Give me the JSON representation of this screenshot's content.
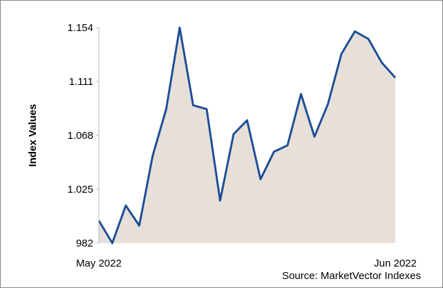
{
  "chart_data": {
    "type": "area",
    "y_label": "Index Values",
    "source": "Source: MarketVector Indexes",
    "categories": [
      "May 2022",
      null,
      null,
      null,
      null,
      null,
      null,
      null,
      null,
      null,
      null,
      null,
      null,
      null,
      null,
      null,
      null,
      null,
      null,
      null,
      null,
      null,
      "Jun 2022"
    ],
    "series": [
      {
        "name": "Index",
        "color": "#1f4e96",
        "fill": "#e6e0d8",
        "values": [
          1000,
          982,
          1012,
          996,
          1052,
          1089,
          1154,
          1092,
          1089,
          1016,
          1069,
          1080,
          1033,
          1055,
          1060,
          1101,
          1067,
          1093,
          1133,
          1151,
          1145,
          1126,
          1114
        ]
      }
    ],
    "ylim": [
      982,
      1154
    ],
    "yticks": [
      982,
      {
        "value": 1025,
        "label": "1.025"
      },
      {
        "value": 1068,
        "label": "1.068"
      },
      {
        "value": 1111,
        "label": "1.111"
      },
      {
        "value": 1154,
        "label": "1.154"
      }
    ],
    "grid": false
  }
}
